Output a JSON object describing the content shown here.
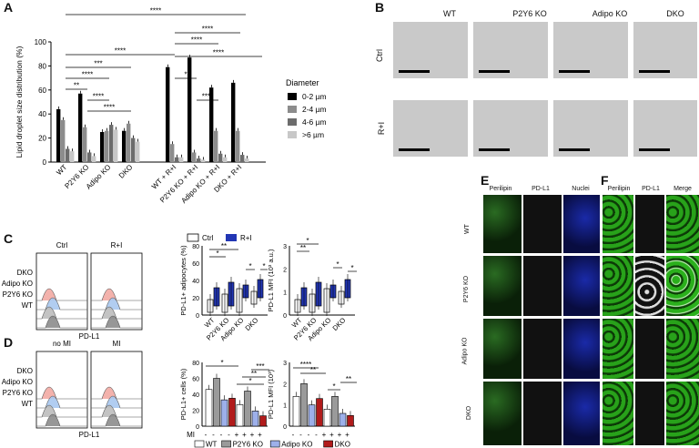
{
  "panels": {
    "A": "A",
    "B": "B",
    "C": "C",
    "D": "D",
    "E": "E",
    "F": "F"
  },
  "chart_A": {
    "type": "bar",
    "ylabel": "Lipid droplet size distribution (%)",
    "ylim": [
      0,
      100
    ],
    "yticks": [
      "0",
      "20",
      "40",
      "60",
      "80",
      "100"
    ],
    "legend_title": "Diameter",
    "categories": [
      "WT",
      "P2Y6 KO",
      "Adipo KO",
      "DKO",
      "WT + R+I",
      "P2Y6 KO + R+I",
      "Adipo KO + R+I",
      "DKO + R+I"
    ],
    "series": [
      {
        "name": "0-2 µm",
        "color": "#000000",
        "values": [
          44,
          57,
          25,
          26,
          79,
          87,
          62,
          66
        ]
      },
      {
        "name": "2-4 µm",
        "color": "#8c8c8c",
        "values": [
          35,
          29,
          26,
          32,
          15,
          8,
          26,
          26
        ]
      },
      {
        "name": "4-6 µm",
        "color": "#6c6c6c",
        "values": [
          11,
          8,
          31,
          20,
          4,
          3,
          7,
          6
        ]
      },
      {
        "name": ">6 µm",
        "color": "#c8c8c8",
        "values": [
          9,
          5,
          27,
          17,
          4,
          2,
          4,
          3
        ]
      }
    ],
    "sig": [
      "****",
      "**",
      "****",
      "***",
      "****",
      "****",
      "****",
      "*",
      "****",
      "****",
      "****",
      "****"
    ]
  },
  "panel_B": {
    "cols": [
      "WT",
      "P2Y6 KO",
      "Adipo KO",
      "DKO"
    ],
    "rows": [
      "Ctrl",
      "R+I"
    ]
  },
  "panel_C": {
    "hist_cols": [
      "Ctrl",
      "R+I"
    ],
    "hist_rows": [
      "DKO",
      "Adipo KO",
      "P2Y6 KO",
      "WT"
    ],
    "xlabel": "PD-L1",
    "legend": [
      "Ctrl",
      "R+I"
    ],
    "box1_ylabel": "PD-L1+ adipocytes (%)",
    "box1_yticks": [
      "0",
      "20",
      "40",
      "60",
      "80"
    ],
    "box2_ylabel": "PD-L1 MFI (10³ a.u.)",
    "box2_yticks": [
      "0",
      "1",
      "2",
      "3"
    ],
    "groups": [
      "WT",
      "P2Y6 KO",
      "Adipo KO",
      "DKO"
    ],
    "sig": [
      "**",
      "*",
      "*",
      "*",
      "**",
      "*",
      "*",
      "*"
    ]
  },
  "panel_D": {
    "hist_cols": [
      "no MI",
      "MI"
    ],
    "hist_rows": [
      "DKO",
      "Adipo KO",
      "P2Y6 KO",
      "WT"
    ],
    "xlabel": "PD-L1",
    "bar1_ylabel": "PD-L1+ cells (%)",
    "bar1_yticks": [
      "0",
      "20",
      "40",
      "60",
      "80"
    ],
    "bar2_ylabel": "PD-L1 MFI (10³)",
    "bar2_yticks": [
      "0",
      "1",
      "2",
      "3"
    ],
    "mi_label": "MI",
    "mi_marks": [
      "-",
      "-",
      "-",
      "-",
      "+",
      "+",
      "+",
      "+"
    ],
    "legend": [
      {
        "name": "WT",
        "color": "#ffffff"
      },
      {
        "name": "P2Y6 KO",
        "color": "#9a9a9a"
      },
      {
        "name": "Adipo KO",
        "color": "#9db0ea"
      },
      {
        "name": "DKO",
        "color": "#b11b1b"
      }
    ],
    "values1": [
      46,
      60,
      33,
      35,
      27,
      44,
      19,
      13
    ],
    "values2": [
      1.4,
      2.0,
      1.0,
      1.3,
      0.8,
      1.4,
      0.6,
      0.5
    ],
    "sig": [
      "*",
      "*",
      "**",
      "***",
      "****",
      "**",
      "*",
      "**"
    ]
  },
  "panel_E": {
    "cols": [
      "Perilipin",
      "PD-L1",
      "Nuclei"
    ],
    "rows": [
      "WT",
      "P2Y6 KO",
      "Adipo KO",
      "DKO"
    ]
  },
  "panel_F": {
    "cols": [
      "Perilipin",
      "PD-L1",
      "Merge"
    ]
  }
}
